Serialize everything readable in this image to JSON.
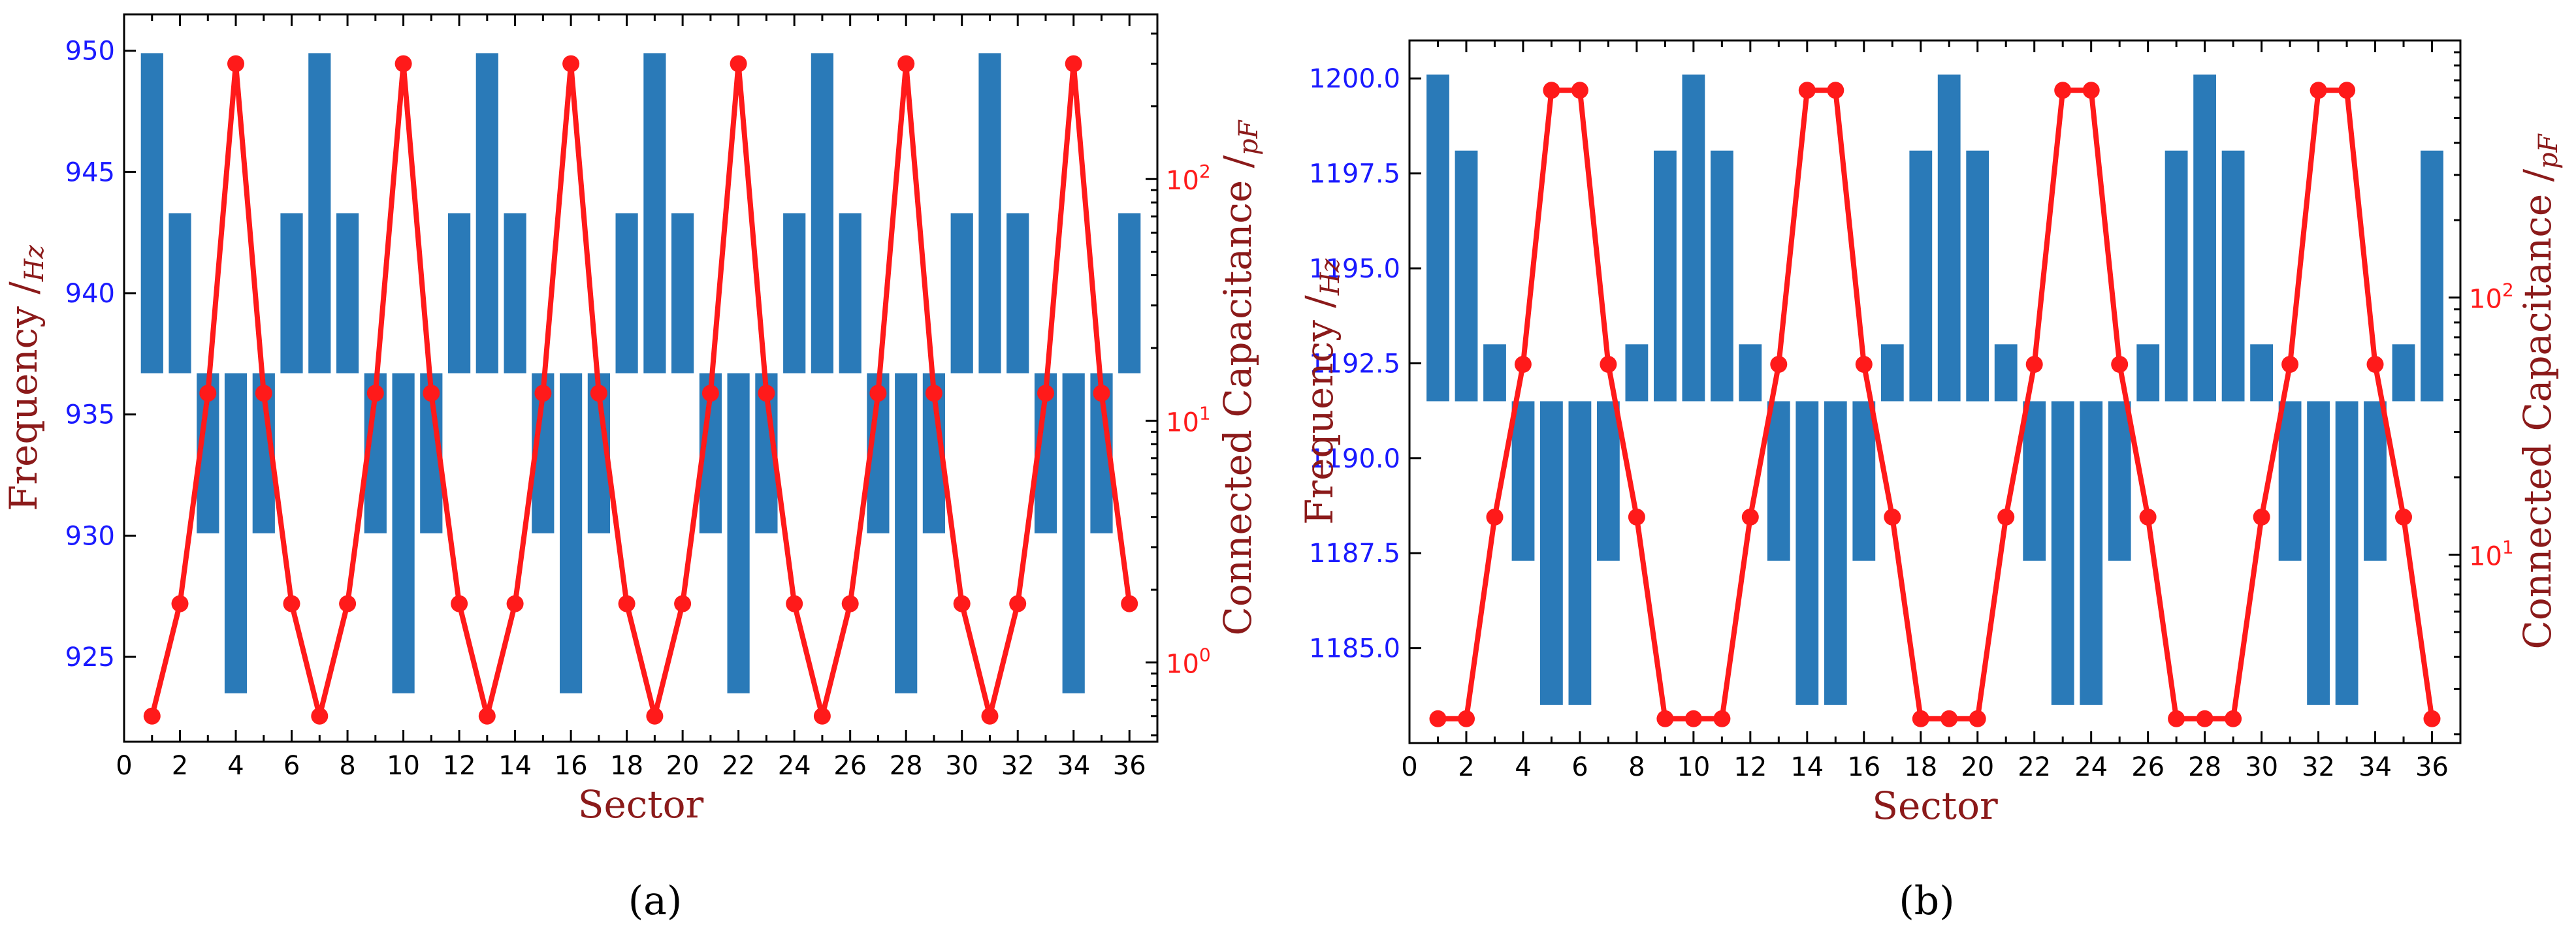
{
  "figure": {
    "panel_labels": [
      "(a)",
      "(b)"
    ]
  },
  "colors": {
    "bar": "#2a7ab8",
    "line": "#ff1a1a",
    "left_axis_label": "#8b1a1a",
    "left_tick": "#1a1aff",
    "right_tick": "#ff1a1a",
    "right_axis_label": "#8b1a1a",
    "x_tick": "#000000",
    "x_axis_label": "#8b1a1a"
  },
  "chart_data": [
    {
      "type": "bar+line",
      "panel": "a",
      "xlabel": "Sector",
      "ylabel_left": "Frequency /Hz",
      "ylabel_left_main": "Frequency /",
      "ylabel_left_sub": "Hz",
      "ylabel_right": "Connected Capacitance /pF",
      "ylabel_right_main": "Connected Capacitance /",
      "ylabel_right_sub": "pF",
      "xlim": [
        0,
        37
      ],
      "xticks": [
        "0",
        "2",
        "4",
        "6",
        "8",
        "10",
        "12",
        "14",
        "16",
        "18",
        "20",
        "22",
        "24",
        "26",
        "28",
        "30",
        "32",
        "34",
        "36"
      ],
      "ylim_left": [
        921.5,
        951.5
      ],
      "yticks_left": [
        "925",
        "930",
        "935",
        "940",
        "945",
        "950"
      ],
      "bar_baseline": 936.7,
      "ylim_right_log": [
        0.47,
        480
      ],
      "yticks_right": [
        {
          "base": "10",
          "exp": "0",
          "value": 1
        },
        {
          "base": "10",
          "exp": "1",
          "value": 10
        },
        {
          "base": "10",
          "exp": "2",
          "value": 100
        }
      ],
      "sectors": [
        1,
        2,
        3,
        4,
        5,
        6,
        7,
        8,
        9,
        10,
        11,
        12,
        13,
        14,
        15,
        16,
        17,
        18,
        19,
        20,
        21,
        22,
        23,
        24,
        25,
        26,
        27,
        28,
        29,
        30,
        31,
        32,
        33,
        34,
        35,
        36
      ],
      "frequency": [
        949.9,
        943.3,
        930.1,
        923.5,
        930.1,
        943.3,
        949.9,
        943.3,
        930.1,
        923.5,
        930.1,
        943.3,
        949.9,
        943.3,
        930.1,
        923.5,
        930.1,
        943.3,
        949.9,
        943.3,
        930.1,
        923.5,
        930.1,
        943.3,
        949.9,
        943.3,
        930.1,
        923.5,
        930.1,
        943.3,
        949.9,
        943.3,
        930.1,
        923.5,
        930.1,
        943.3
      ],
      "capacitance": [
        0.6,
        1.75,
        13,
        300,
        13,
        1.75,
        0.6,
        1.75,
        13,
        300,
        13,
        1.75,
        0.6,
        1.75,
        13,
        300,
        13,
        1.75,
        0.6,
        1.75,
        13,
        300,
        13,
        1.75,
        0.6,
        1.75,
        13,
        300,
        13,
        1.75,
        0.6,
        1.75,
        13,
        300,
        13,
        1.75
      ]
    },
    {
      "type": "bar+line",
      "panel": "b",
      "xlabel": "Sector",
      "ylabel_left": "Frequency /Hz",
      "ylabel_left_main": "Frequency /",
      "ylabel_left_sub": "Hz",
      "ylabel_right": "Connected Capacitance /pF",
      "ylabel_right_main": "Connected Capacitance /",
      "ylabel_right_sub": "pF",
      "xlim": [
        0,
        37
      ],
      "xticks": [
        "0",
        "2",
        "4",
        "6",
        "8",
        "10",
        "12",
        "14",
        "16",
        "18",
        "20",
        "22",
        "24",
        "26",
        "28",
        "30",
        "32",
        "34",
        "36"
      ],
      "ylim_left": [
        1182.5,
        1201.0
      ],
      "yticks_left": [
        "1185.0",
        "1187.5",
        "1190.0",
        "1192.5",
        "1195.0",
        "1197.5",
        "1200.0"
      ],
      "bar_baseline": 1191.5,
      "ylim_right_log": [
        1.85,
        1000
      ],
      "yticks_right": [
        {
          "base": "10",
          "exp": "1",
          "value": 10
        },
        {
          "base": "10",
          "exp": "2",
          "value": 100
        }
      ],
      "sectors": [
        1,
        2,
        3,
        4,
        5,
        6,
        7,
        8,
        9,
        10,
        11,
        12,
        13,
        14,
        15,
        16,
        17,
        18,
        19,
        20,
        21,
        22,
        23,
        24,
        25,
        26,
        27,
        28,
        29,
        30,
        31,
        32,
        33,
        34,
        35,
        36
      ],
      "frequency": [
        1200.1,
        1198.1,
        1193.0,
        1187.3,
        1183.5,
        1183.5,
        1187.3,
        1193.0,
        1198.1,
        1200.1,
        1198.1,
        1193.0,
        1187.3,
        1183.5,
        1183.5,
        1187.3,
        1193.0,
        1198.1,
        1200.1,
        1198.1,
        1193.0,
        1187.3,
        1183.5,
        1183.5,
        1187.3,
        1193.0,
        1198.1,
        1200.1,
        1198.1,
        1193.0,
        1187.3,
        1183.5,
        1183.5,
        1187.3,
        1193.0,
        1198.1
      ],
      "capacitance": [
        2.3,
        2.3,
        14,
        55,
        640,
        640,
        55,
        14,
        2.3,
        2.3,
        2.3,
        14,
        55,
        640,
        640,
        55,
        14,
        2.3,
        2.3,
        2.3,
        14,
        55,
        640,
        640,
        55,
        14,
        2.3,
        2.3,
        2.3,
        14,
        55,
        640,
        640,
        55,
        14,
        2.3
      ]
    }
  ]
}
